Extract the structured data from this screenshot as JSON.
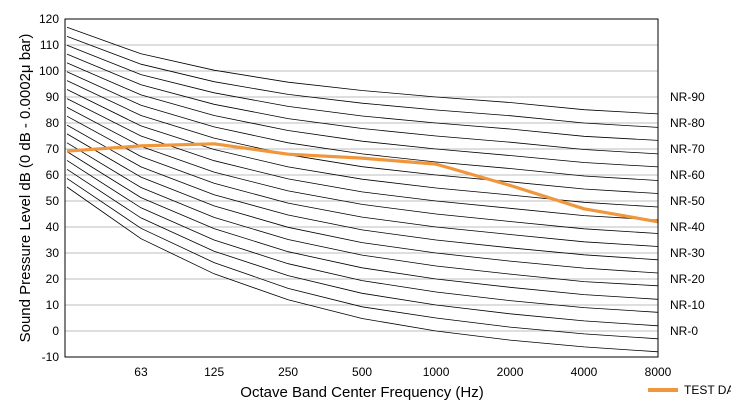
{
  "chart_data": {
    "type": "line",
    "xlabel": "Octave Band Center Frequency (Hz)",
    "ylabel": "Sound Pressure Level dB (0 dB - 0.0002μ bar)",
    "x_positions": [
      31.5,
      63,
      125,
      250,
      500,
      1000,
      2000,
      4000,
      8000
    ],
    "x_tick_labels": [
      "",
      "63",
      "125",
      "250",
      "500",
      "1000",
      "2000",
      "4000",
      "8000"
    ],
    "ylim": [
      -10,
      120
    ],
    "y_ticks": [
      -10,
      0,
      10,
      20,
      30,
      40,
      50,
      60,
      70,
      80,
      90,
      100,
      110,
      120
    ],
    "grid": "horizontal",
    "legend_position": "bottom-right",
    "nr_curve_labels": [
      "NR-90",
      "NR-80",
      "NR-70",
      "NR-60",
      "NR-50",
      "NR-40",
      "NR-30",
      "NR-20",
      "NR-10",
      "NR-0"
    ],
    "nr_curve_label_values": [
      90,
      80,
      70,
      60,
      50,
      40,
      30,
      20,
      10,
      0
    ],
    "nr_curves": [
      {
        "nr": 0,
        "values": [
          55.4,
          35.5,
          22.0,
          12.0,
          4.8,
          0.0,
          -3.5,
          -6.1,
          -8.0
        ]
      },
      {
        "nr": 5,
        "values": [
          58.7,
          39.5,
          26.3,
          16.4,
          9.3,
          5.0,
          1.5,
          -1.1,
          -3.0
        ]
      },
      {
        "nr": 10,
        "values": [
          62.2,
          43.5,
          30.7,
          21.3,
          14.5,
          10.0,
          6.6,
          3.9,
          2.0
        ]
      },
      {
        "nr": 15,
        "values": [
          65.6,
          47.4,
          35.0,
          25.9,
          19.4,
          15.0,
          11.7,
          9.0,
          7.2
        ]
      },
      {
        "nr": 20,
        "values": [
          69.0,
          51.3,
          39.4,
          30.5,
          24.3,
          20.0,
          16.8,
          14.0,
          12.2
        ]
      },
      {
        "nr": 25,
        "values": [
          72.4,
          55.2,
          43.7,
          35.2,
          29.2,
          25.0,
          21.9,
          19.0,
          17.4
        ]
      },
      {
        "nr": 30,
        "values": [
          75.8,
          59.2,
          48.1,
          39.9,
          34.0,
          30.0,
          26.9,
          24.2,
          22.3
        ]
      },
      {
        "nr": 35,
        "values": [
          79.2,
          63.1,
          52.4,
          44.6,
          38.9,
          35.0,
          32.0,
          29.3,
          27.4
        ]
      },
      {
        "nr": 40,
        "values": [
          82.6,
          67.1,
          56.8,
          49.2,
          43.8,
          40.0,
          37.1,
          34.3,
          32.5
        ]
      },
      {
        "nr": 45,
        "values": [
          86.0,
          71.0,
          61.1,
          53.9,
          48.7,
          45.0,
          42.1,
          39.3,
          37.5
        ]
      },
      {
        "nr": 50,
        "values": [
          89.4,
          75.0,
          65.5,
          58.5,
          53.5,
          50.0,
          47.2,
          44.4,
          42.7
        ]
      },
      {
        "nr": 55,
        "values": [
          92.9,
          78.9,
          69.8,
          63.1,
          58.4,
          55.0,
          52.3,
          49.5,
          47.7
        ]
      },
      {
        "nr": 60,
        "values": [
          96.3,
          82.9,
          74.2,
          67.8,
          63.2,
          60.0,
          57.4,
          54.6,
          52.9
        ]
      },
      {
        "nr": 65,
        "values": [
          99.7,
          86.8,
          78.5,
          72.4,
          68.1,
          65.0,
          62.5,
          59.6,
          57.9
        ]
      },
      {
        "nr": 70,
        "values": [
          103.1,
          90.8,
          82.9,
          77.1,
          73.0,
          70.0,
          67.5,
          64.8,
          63.1
        ]
      },
      {
        "nr": 75,
        "values": [
          106.5,
          94.7,
          87.2,
          81.7,
          77.9,
          75.0,
          72.6,
          69.8,
          68.1
        ]
      },
      {
        "nr": 80,
        "values": [
          109.9,
          98.6,
          91.6,
          86.4,
          82.7,
          80.0,
          77.7,
          74.9,
          73.3
        ]
      },
      {
        "nr": 85,
        "values": [
          113.3,
          102.6,
          95.9,
          91.0,
          87.6,
          85.0,
          82.8,
          80.0,
          78.3
        ]
      },
      {
        "nr": 90,
        "values": [
          116.8,
          106.6,
          100.3,
          95.7,
          92.5,
          90.0,
          87.9,
          85.1,
          83.5
        ]
      }
    ],
    "series": [
      {
        "name": "TEST DATA",
        "color": "#f0963c",
        "values": [
          69.2,
          71.2,
          72.0,
          68.0,
          66.5,
          64.2,
          56.0,
          47.0,
          42.0
        ]
      }
    ]
  }
}
